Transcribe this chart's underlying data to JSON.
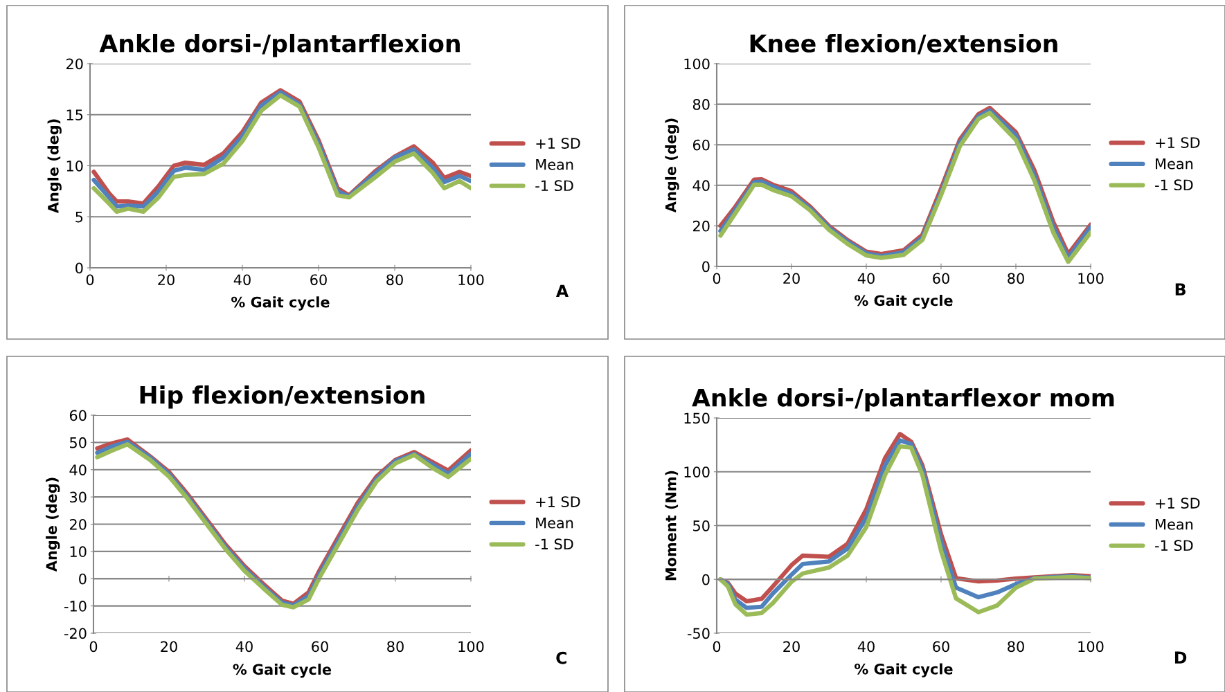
{
  "chart_data": [
    {
      "type": "line",
      "title": "Ankle dorsi-/plantarflexion",
      "xlabel": "% Gait cycle",
      "ylabel": "Angle (deg)",
      "annotations": [
        "A"
      ],
      "x": [
        1,
        5,
        7,
        10,
        14,
        18,
        22,
        25,
        30,
        35,
        40,
        45,
        50,
        55,
        60,
        65,
        68,
        75,
        80,
        85,
        90,
        93,
        97,
        100
      ],
      "xlim": [
        0,
        100
      ],
      "xticks": [
        0,
        20,
        40,
        60,
        80,
        100
      ],
      "ylim": [
        0,
        20
      ],
      "yticks": [
        0,
        5,
        10,
        15,
        20
      ],
      "grid": "y",
      "legend": "right",
      "marker": "none",
      "line_style": "solid",
      "series": [
        {
          "name": "+1 SD",
          "color": "#c0504d",
          "values": [
            9.4,
            7.3,
            6.5,
            6.5,
            6.3,
            8.0,
            10.0,
            10.3,
            10.1,
            11.2,
            13.3,
            16.2,
            17.4,
            16.3,
            12.5,
            7.8,
            7.1,
            9.5,
            10.9,
            11.9,
            10.3,
            8.8,
            9.4,
            9.0
          ]
        },
        {
          "name": "Mean",
          "color": "#4f81bd",
          "values": [
            8.6,
            6.9,
            6.0,
            6.1,
            6.0,
            7.5,
            9.5,
            9.8,
            9.6,
            10.8,
            12.9,
            15.9,
            17.2,
            16.0,
            12.2,
            7.5,
            7.0,
            9.3,
            10.8,
            11.6,
            9.8,
            8.4,
            9.0,
            8.5
          ]
        },
        {
          "name": "-1 SD",
          "color": "#9bbb59",
          "values": [
            7.8,
            6.3,
            5.5,
            5.8,
            5.5,
            6.9,
            8.9,
            9.1,
            9.2,
            10.2,
            12.4,
            15.4,
            16.9,
            15.8,
            11.8,
            7.1,
            6.9,
            8.9,
            10.4,
            11.2,
            9.3,
            7.8,
            8.5,
            7.8
          ]
        }
      ]
    },
    {
      "type": "line",
      "title": "Knee flexion/extension",
      "xlabel": "% Gait cycle",
      "ylabel": "Angle (deg)",
      "annotations": [
        "B"
      ],
      "x": [
        1,
        5,
        10,
        12,
        15,
        20,
        25,
        30,
        35,
        40,
        44,
        50,
        55,
        60,
        65,
        70,
        73,
        80,
        85,
        90,
        94,
        100
      ],
      "xlim": [
        0,
        100
      ],
      "xticks": [
        0,
        20,
        40,
        60,
        80,
        100
      ],
      "ylim": [
        0,
        100
      ],
      "yticks": [
        0,
        20,
        40,
        60,
        80,
        100
      ],
      "grid": "y",
      "legend": "right",
      "marker": "none",
      "line_style": "solid",
      "series": [
        {
          "name": "+1 SD",
          "color": "#c0504d",
          "values": [
            20,
            29.5,
            42.8,
            43,
            40.3,
            37.1,
            29.5,
            20,
            13,
            7.3,
            6.1,
            8,
            15.6,
            38.4,
            62.5,
            75.1,
            78.2,
            66.2,
            47.2,
            21.9,
            6.1,
            20.6
          ]
        },
        {
          "name": "Mean",
          "color": "#4f81bd",
          "values": [
            17.5,
            28,
            41.5,
            41.9,
            39.4,
            35.8,
            28.5,
            19.1,
            12.2,
            6.5,
            5.1,
            7,
            14.3,
            36.5,
            61,
            74,
            77,
            64.7,
            44.7,
            19.4,
            4.2,
            19.4
          ]
        },
        {
          "name": "-1 SD",
          "color": "#9bbb59",
          "values": [
            15.2,
            26.3,
            40.3,
            40.3,
            37.7,
            34.6,
            27.6,
            18.1,
            11.1,
            5.4,
            4.2,
            5.7,
            13,
            35.2,
            59.2,
            72.8,
            75.7,
            62.4,
            42.2,
            16.8,
            2.3,
            16.8
          ]
        }
      ]
    },
    {
      "type": "line",
      "title": "Hip flexion/extension",
      "xlabel": "% Gait cycle",
      "ylabel": "Angle (deg)",
      "annotations": [
        "C"
      ],
      "x": [
        1,
        5,
        9,
        15,
        20,
        25,
        30,
        35,
        40,
        45,
        50,
        53,
        57,
        60,
        65,
        70,
        75,
        80,
        85,
        90,
        94,
        100
      ],
      "xlim": [
        0,
        100
      ],
      "xticks": [
        0,
        20,
        40,
        60,
        80,
        100
      ],
      "ylim": [
        -20,
        60
      ],
      "yticks": [
        -20,
        -10,
        0,
        10,
        20,
        30,
        40,
        50,
        60
      ],
      "grid": "y",
      "legend": "right",
      "marker": "none",
      "line_style": "solid",
      "series": [
        {
          "name": "+1 SD",
          "color": "#c0504d",
          "values": [
            47.8,
            49.7,
            51.1,
            44.9,
            39.2,
            30.9,
            21.7,
            12.5,
            4.6,
            -1.9,
            -8.1,
            -9.2,
            -5.0,
            3.3,
            15.6,
            27.8,
            37.5,
            43.6,
            46.5,
            42.7,
            39.7,
            47.1
          ]
        },
        {
          "name": "Mean",
          "color": "#4f81bd",
          "values": [
            46.2,
            48.6,
            50.2,
            44.5,
            38.4,
            30.0,
            20.8,
            11.6,
            3.8,
            -2.8,
            -8.8,
            -9.8,
            -6.3,
            2.0,
            14.3,
            26.5,
            36.6,
            43.2,
            45.8,
            41.7,
            38.5,
            45.8
          ]
        },
        {
          "name": "-1 SD",
          "color": "#9bbb59",
          "values": [
            44.6,
            47.1,
            49.3,
            43.6,
            37.5,
            29.2,
            20.0,
            10.8,
            2.9,
            -3.5,
            -9.6,
            -10.5,
            -7.6,
            0.7,
            12.9,
            25.2,
            35.7,
            42.3,
            45.4,
            40.5,
            37.3,
            44.0
          ]
        }
      ]
    },
    {
      "type": "line",
      "title": "Ankle dorsi-/plantarflexor mom",
      "xlabel": "% Gait cycle",
      "ylabel": "Moment (Nm)",
      "annotations": [
        "D"
      ],
      "x": [
        1,
        3,
        5,
        8,
        12,
        15,
        20,
        23,
        30,
        35,
        40,
        45,
        49,
        52,
        55,
        60,
        64,
        70,
        75,
        80,
        85,
        95,
        100
      ],
      "xlim": [
        0,
        100
      ],
      "xticks": [
        0,
        20,
        40,
        60,
        80,
        100
      ],
      "ylim": [
        -50,
        150
      ],
      "yticks": [
        -50,
        0,
        50,
        100,
        150
      ],
      "grid": "y",
      "legend": "right",
      "marker": "none",
      "line_style": "solid",
      "series": [
        {
          "name": "+1 SD",
          "color": "#c0504d",
          "values": [
            0,
            -3.3,
            -13.2,
            -20.3,
            -18.1,
            -6.6,
            13.2,
            22.1,
            21.0,
            33.1,
            65.1,
            112.6,
            135.1,
            128,
            106,
            41.9,
            1.1,
            -1.8,
            -1.1,
            0.7,
            1.8,
            4.0,
            2.9
          ]
        },
        {
          "name": "Mean",
          "color": "#4f81bd",
          "values": [
            0,
            -4.4,
            -18.8,
            -26.5,
            -25.4,
            -13.2,
            4.4,
            14.3,
            16.6,
            28.7,
            57.4,
            106,
            129.1,
            125.8,
            102.6,
            35.3,
            -7.7,
            -16.6,
            -12.1,
            -4.4,
            1.1,
            3.1,
            1.5
          ]
        },
        {
          "name": "-1 SD",
          "color": "#9bbb59",
          "values": [
            0,
            -6.6,
            -23.2,
            -32.7,
            -31.3,
            -22.1,
            -2.2,
            5.5,
            11.0,
            22.1,
            48.6,
            97.1,
            123.6,
            122.5,
            97.1,
            26.5,
            -17.7,
            -30.5,
            -24.3,
            -7.7,
            0.7,
            2.2,
            1.1
          ]
        }
      ]
    }
  ]
}
